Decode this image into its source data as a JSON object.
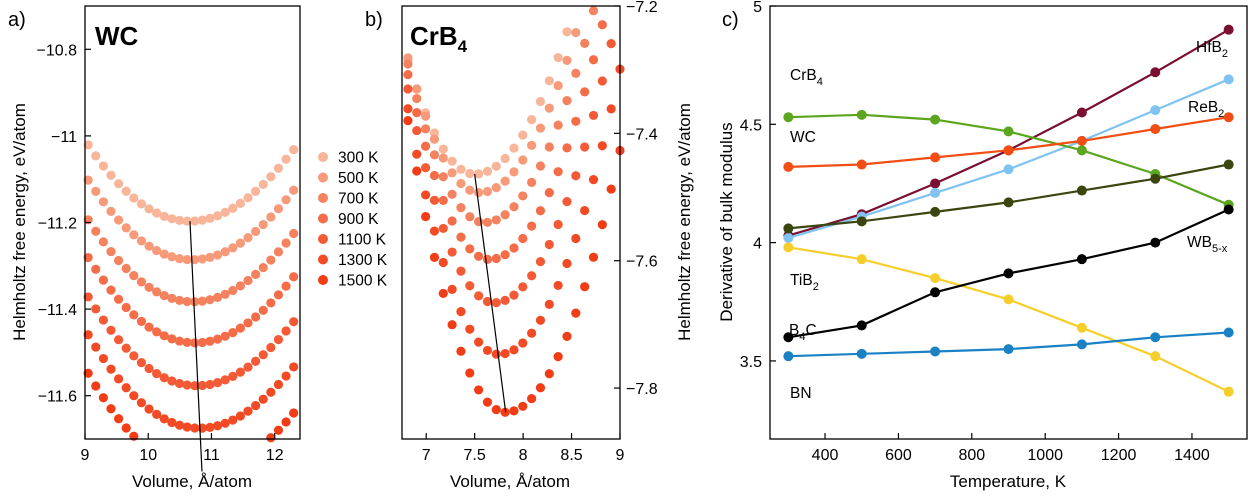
{
  "chart_data": [
    {
      "type": "scatter",
      "panel_label": "a)",
      "title": "WC",
      "xlabel": "Volume, Å/atom",
      "ylabel": "Helmholtz free energy, eV/atom",
      "xlim": [
        9.0,
        12.4
      ],
      "ylim": [
        -11.7,
        -10.7
      ],
      "xticks": [
        9,
        10,
        11,
        12
      ],
      "yticks": [
        -10.8,
        -11,
        -11.2,
        -11.4,
        -11.6
      ],
      "ytick_labels": [
        "−10.8",
        "−11",
        "−11.2",
        "−11.4",
        "−11.6"
      ],
      "x_range": [
        9.05,
        12.3
      ],
      "point_count": 28,
      "curve_width": [
        0.0136,
        0.014
      ],
      "curve_skew": 1.0,
      "series": [
        {
          "name": "300 K",
          "vmin": 10.66,
          "emin": -11.197,
          "color": "#f8b59a"
        },
        {
          "name": "500 K",
          "vmin": 10.69,
          "emin": -11.286,
          "color": "#f69a7a"
        },
        {
          "name": "700 K",
          "vmin": 10.71,
          "emin": -11.383,
          "color": "#f5825f"
        },
        {
          "name": "900 K",
          "vmin": 10.74,
          "emin": -11.478,
          "color": "#f46c48"
        },
        {
          "name": "1100 K",
          "vmin": 10.77,
          "emin": -11.577,
          "color": "#f35a35"
        },
        {
          "name": "1300 K",
          "vmin": 10.81,
          "emin": -11.675,
          "color": "#f24a24"
        },
        {
          "name": "1500 K",
          "vmin": 10.85,
          "emin": -11.775,
          "color": "#f13c16"
        }
      ],
      "legend": [
        "300 K",
        "500 K",
        "700 K",
        "900 K",
        "1100 K",
        "1300 K",
        "1500 K"
      ],
      "trend_line": {
        "from": [
          10.66,
          -11.197
        ],
        "to": [
          10.85,
          -11.775
        ]
      }
    },
    {
      "type": "scatter",
      "panel_label": "b)",
      "title": "CrB",
      "title_sub": "4",
      "xlabel": "Volume, Å/atom",
      "ylabel": "Helmholtz free energy, eV/atom",
      "xlim": [
        6.75,
        9.0
      ],
      "ylim": [
        -7.88,
        -7.2
      ],
      "xticks": [
        7,
        7.5,
        8,
        8.5,
        9
      ],
      "yticks": [
        -7.2,
        -7.4,
        -7.6,
        -7.8
      ],
      "ytick_labels": [
        "−7.2",
        "−7.4",
        "−7.6",
        "−7.8"
      ],
      "x_range": [
        6.72,
        9.0
      ],
      "point_count": 26,
      "curve_width": [
        0.05,
        0.06
      ],
      "curve_skew": 1.5,
      "series": [
        {
          "name": "300 K",
          "vmin": 7.5,
          "emin": -7.464,
          "color": "#f8b59a"
        },
        {
          "name": "500 K",
          "vmin": 7.55,
          "emin": -7.493,
          "color": "#f69a7a"
        },
        {
          "name": "700 K",
          "vmin": 7.6,
          "emin": -7.54,
          "color": "#f5825f"
        },
        {
          "name": "900 K",
          "vmin": 7.65,
          "emin": -7.598,
          "color": "#f46c48"
        },
        {
          "name": "1100 K",
          "vmin": 7.7,
          "emin": -7.666,
          "color": "#f35a35"
        },
        {
          "name": "1300 K",
          "vmin": 7.75,
          "emin": -7.747,
          "color": "#f24a24"
        },
        {
          "name": "1500 K",
          "vmin": 7.82,
          "emin": -7.838,
          "color": "#f13c16"
        }
      ],
      "trend_line": {
        "from": [
          7.5,
          -7.464
        ],
        "to": [
          7.82,
          -7.838
        ]
      }
    },
    {
      "type": "line",
      "panel_label": "c)",
      "xlabel": "Temperature, K",
      "ylabel": "Derivative of bulk modulus",
      "xlim": [
        250,
        1550
      ],
      "ylim": [
        3.17,
        5.0
      ],
      "xticks": [
        400,
        600,
        800,
        1000,
        1200,
        1400
      ],
      "yticks": [
        3.5,
        4,
        4.5,
        5
      ],
      "ytick_labels": [
        "3.5",
        "4",
        "4.5",
        "5"
      ],
      "x": [
        300,
        500,
        700,
        900,
        1100,
        1300,
        1500
      ],
      "series": [
        {
          "name": "HfB",
          "sub": "2",
          "color": "#7a0f30",
          "values": [
            4.03,
            4.12,
            4.25,
            4.39,
            4.55,
            4.72,
            4.9
          ]
        },
        {
          "name": "ReB",
          "sub": "2",
          "color": "#80c3f0",
          "values": [
            4.02,
            4.11,
            4.21,
            4.31,
            4.43,
            4.56,
            4.69
          ]
        },
        {
          "name": "CrB",
          "sub": "4",
          "color": "#5ca51e",
          "values": [
            4.53,
            4.54,
            4.52,
            4.47,
            4.39,
            4.29,
            4.16
          ]
        },
        {
          "name": "WC",
          "sub": "",
          "color": "#f24d14",
          "values": [
            4.32,
            4.33,
            4.36,
            4.39,
            4.43,
            4.48,
            4.53
          ]
        },
        {
          "name": "WB",
          "sub": "5-x",
          "color": "#3b4510",
          "values": [
            4.06,
            4.09,
            4.13,
            4.17,
            4.22,
            4.27,
            4.33
          ]
        },
        {
          "name": "TiB",
          "sub": "2",
          "color": "#f5ce2a",
          "values": [
            3.98,
            3.93,
            3.85,
            3.76,
            3.64,
            3.52,
            3.37
          ]
        },
        {
          "name": "B",
          "sub": "4",
          "suffix": "C",
          "color": "#000000",
          "values": [
            3.6,
            3.65,
            3.79,
            3.87,
            3.93,
            4.0,
            4.14
          ]
        },
        {
          "name": "BN",
          "sub": "",
          "color": "#1a82c4",
          "values": [
            3.52,
            3.53,
            3.54,
            3.55,
            3.57,
            3.6,
            3.62
          ]
        }
      ]
    }
  ]
}
